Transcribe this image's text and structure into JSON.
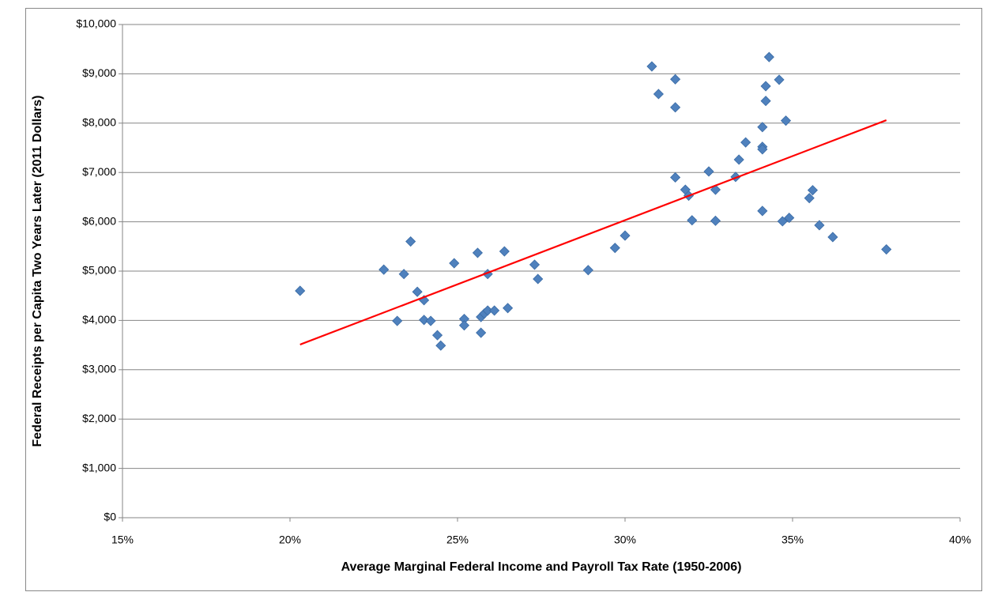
{
  "chart_data": {
    "type": "scatter",
    "xlabel": "Average Marginal Federal Income and Payroll Tax Rate (1950-2006)",
    "ylabel": "Federal Receipts per Capita Two Years Later (2011 Dollars)",
    "color": "#4f81bd",
    "x": [
      20.3,
      22.8,
      23.2,
      23.4,
      23.6,
      23.8,
      24.0,
      24.0,
      24.2,
      24.4,
      24.5,
      24.9,
      25.2,
      25.2,
      25.6,
      25.7,
      25.7,
      25.8,
      25.9,
      25.9,
      26.1,
      26.4,
      26.5,
      27.3,
      27.4,
      28.9,
      29.7,
      30.0,
      30.8,
      31.0,
      31.5,
      31.5,
      31.5,
      31.8,
      31.9,
      32.0,
      32.5,
      32.7,
      32.7,
      33.3,
      33.4,
      33.6,
      34.1,
      34.1,
      34.1,
      34.1,
      34.2,
      34.2,
      34.3,
      34.6,
      34.7,
      34.8,
      34.9,
      35.5,
      35.6,
      35.8,
      36.2,
      37.8
    ],
    "values": [
      4600,
      5030,
      3990,
      4940,
      5600,
      4580,
      4410,
      4010,
      3990,
      3700,
      3490,
      5160,
      4030,
      3900,
      5370,
      4070,
      3750,
      4140,
      4940,
      4200,
      4200,
      5400,
      4250,
      5130,
      4840,
      5020,
      5470,
      5720,
      9150,
      8590,
      8890,
      8320,
      6900,
      6650,
      6530,
      6030,
      7020,
      6650,
      6020,
      6910,
      7260,
      7610,
      7920,
      7520,
      7470,
      6220,
      8750,
      8450,
      9340,
      8880,
      6010,
      8050,
      6080,
      6480,
      6640,
      5930,
      5690,
      5440
    ],
    "trendline": {
      "color": "#ff0000",
      "x": [
        20.3,
        37.8
      ],
      "values": [
        3510,
        8060
      ]
    },
    "xlim": [
      15,
      40
    ],
    "xticks": [
      {
        "value": 15,
        "label": "15%"
      },
      {
        "value": 20,
        "label": "20%"
      },
      {
        "value": 25,
        "label": "25%"
      },
      {
        "value": 30,
        "label": "30%"
      },
      {
        "value": 35,
        "label": "35%"
      },
      {
        "value": 40,
        "label": "40%"
      }
    ],
    "ylim": [
      0,
      10000
    ],
    "yticks": [
      {
        "value": 0,
        "label": "$0"
      },
      {
        "value": 1000,
        "label": "$1,000"
      },
      {
        "value": 2000,
        "label": "$2,000"
      },
      {
        "value": 3000,
        "label": "$3,000"
      },
      {
        "value": 4000,
        "label": "$4,000"
      },
      {
        "value": 5000,
        "label": "$5,000"
      },
      {
        "value": 6000,
        "label": "$6,000"
      },
      {
        "value": 7000,
        "label": "$7,000"
      },
      {
        "value": 8000,
        "label": "$8,000"
      },
      {
        "value": 9000,
        "label": "$9,000"
      },
      {
        "value": 10000,
        "label": "$10,000"
      }
    ],
    "grid": true
  }
}
